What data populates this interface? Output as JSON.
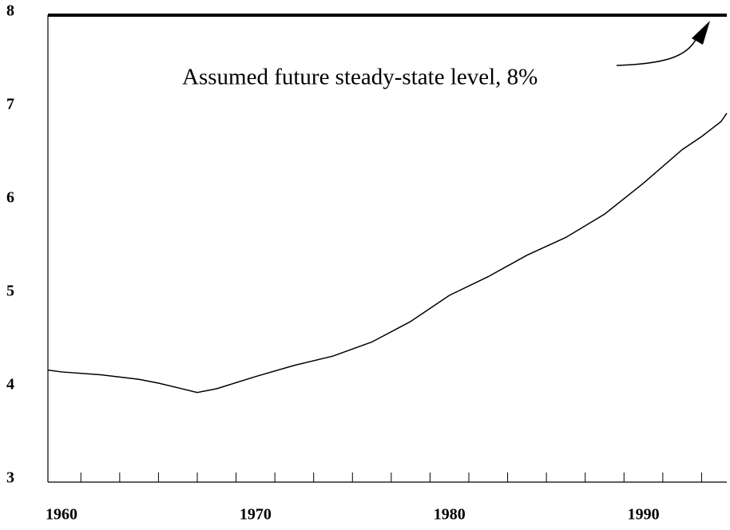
{
  "chart_data": {
    "type": "line",
    "x": [
      1959.3,
      1960,
      1962,
      1964,
      1965,
      1966,
      1967,
      1968,
      1970,
      1972,
      1974,
      1976,
      1978,
      1980,
      1982,
      1984,
      1986,
      1988,
      1990,
      1992,
      1993,
      1994,
      1994.3
    ],
    "series": [
      {
        "color": "#000000",
        "values": [
          4.2,
          4.18,
          4.15,
          4.1,
          4.06,
          4.01,
          3.96,
          4.0,
          4.13,
          4.25,
          4.35,
          4.5,
          4.72,
          5.0,
          5.2,
          5.43,
          5.62,
          5.87,
          6.2,
          6.56,
          6.7,
          6.86,
          6.95
        ]
      }
    ],
    "reference_value": 8,
    "annotation": "Assumed future steady-state level, 8%",
    "xlim": [
      1959.3,
      1994.3
    ],
    "xticks": [
      1960,
      1970,
      1980,
      1990
    ],
    "xminorticks": [
      1961,
      1963,
      1965,
      1967,
      1969,
      1971,
      1973,
      1975,
      1977,
      1979,
      1981,
      1983,
      1985,
      1987,
      1989,
      1991,
      1993
    ],
    "ylim": [
      3,
      8
    ],
    "yticks": [
      3,
      4,
      5,
      6,
      7,
      8
    ]
  }
}
